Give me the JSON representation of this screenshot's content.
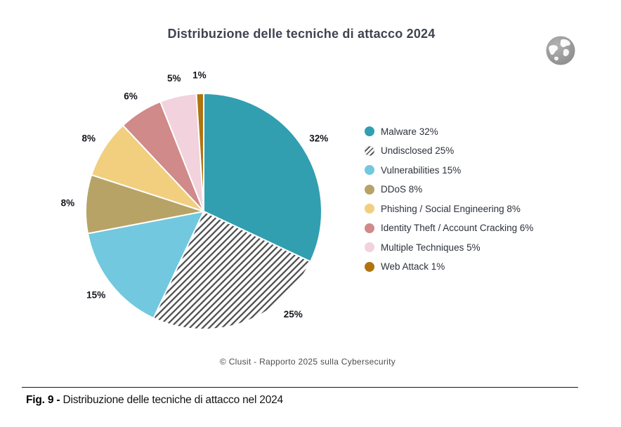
{
  "page": {
    "source_caption": "© Clusit - Rapporto 2025 sulla Cybersecurity",
    "figure_caption_prefix": "Fig. 9 -",
    "figure_caption_text": "Distribuzione delle tecniche di attacco nel 2024"
  },
  "chart_data": {
    "type": "pie",
    "title": "Distribuzione delle tecniche di attacco 2024",
    "unit": "%",
    "start_angle_deg": 0,
    "direction": "clockwise",
    "legend_position": "right",
    "slice_border_color": "#ffffff",
    "label_color": "#15151e",
    "hatch_stripe_color": "#4b4b4b",
    "hatch_background_color": "#fcfcfc",
    "slices": [
      {
        "label": "Malware",
        "value": 32,
        "color": "#319fb0",
        "pattern": "solid"
      },
      {
        "label": "Undisclosed",
        "value": 25,
        "color": "#4b4b4b",
        "pattern": "diagonal-hatch"
      },
      {
        "label": "Vulnerabilities",
        "value": 15,
        "color": "#72c8de",
        "pattern": "solid"
      },
      {
        "label": "DDoS",
        "value": 8,
        "color": "#b7a366",
        "pattern": "solid"
      },
      {
        "label": "Phishing / Social Engineering",
        "value": 8,
        "color": "#f1cf7f",
        "pattern": "solid"
      },
      {
        "label": "Identity Theft / Account Cracking",
        "value": 6,
        "color": "#cf8a89",
        "pattern": "solid"
      },
      {
        "label": "Multiple Techniques",
        "value": 5,
        "color": "#f2d2dc",
        "pattern": "solid"
      },
      {
        "label": "Web Attack",
        "value": 1,
        "color": "#b1730e",
        "pattern": "solid"
      }
    ]
  }
}
